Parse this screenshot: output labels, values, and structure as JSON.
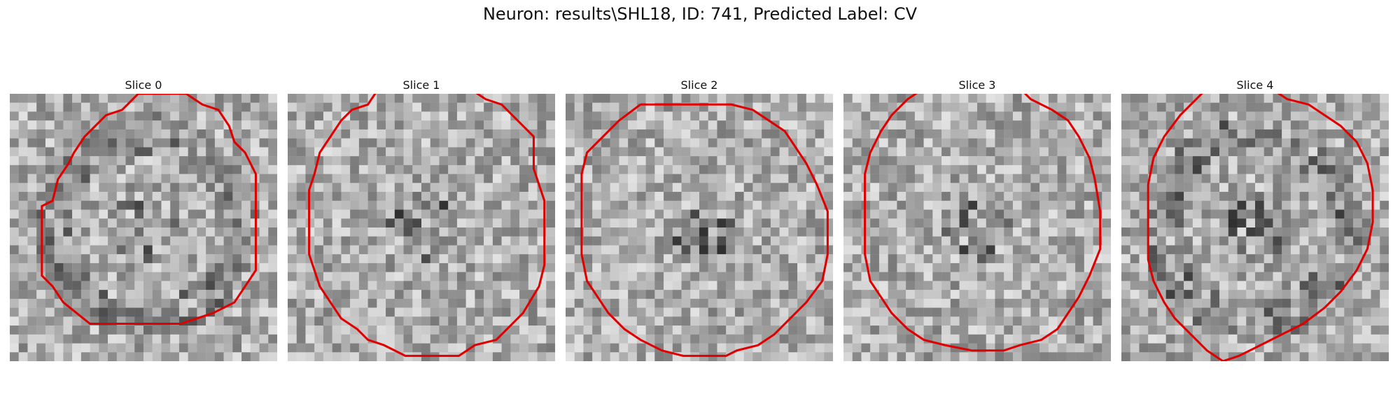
{
  "figure": {
    "title": "Neuron: results\\SHL18, ID: 741, Predicted Label: CV"
  },
  "panels": [
    {
      "title": "Slice 0",
      "seed": 11,
      "dark_ring": true,
      "contour": [
        [
          48,
          0
        ],
        [
          66,
          0
        ],
        [
          72,
          4
        ],
        [
          78,
          6
        ],
        [
          82,
          12
        ],
        [
          84,
          18
        ],
        [
          88,
          22
        ],
        [
          92,
          30
        ],
        [
          92,
          66
        ],
        [
          88,
          72
        ],
        [
          84,
          78
        ],
        [
          80,
          80
        ],
        [
          76,
          82
        ],
        [
          70,
          84
        ],
        [
          64,
          86
        ],
        [
          30,
          86
        ],
        [
          20,
          78
        ],
        [
          16,
          72
        ],
        [
          12,
          68
        ],
        [
          12,
          56
        ],
        [
          12,
          42
        ],
        [
          16,
          40
        ],
        [
          18,
          32
        ],
        [
          22,
          26
        ],
        [
          24,
          22
        ],
        [
          28,
          16
        ],
        [
          32,
          12
        ],
        [
          36,
          8
        ],
        [
          42,
          6
        ]
      ]
    },
    {
      "title": "Slice 1",
      "seed": 23,
      "dark_ring": false,
      "contour": [
        [
          34,
          -2
        ],
        [
          30,
          4
        ],
        [
          24,
          6
        ],
        [
          20,
          10
        ],
        [
          16,
          16
        ],
        [
          12,
          22
        ],
        [
          10,
          30
        ],
        [
          8,
          36
        ],
        [
          8,
          50
        ],
        [
          8,
          60
        ],
        [
          10,
          66
        ],
        [
          12,
          72
        ],
        [
          16,
          78
        ],
        [
          20,
          84
        ],
        [
          26,
          88
        ],
        [
          30,
          92
        ],
        [
          36,
          94
        ],
        [
          44,
          98
        ],
        [
          64,
          98
        ],
        [
          70,
          94
        ],
        [
          78,
          92
        ],
        [
          84,
          86
        ],
        [
          88,
          82
        ],
        [
          94,
          72
        ],
        [
          96,
          64
        ],
        [
          96,
          40
        ],
        [
          94,
          34
        ],
        [
          92,
          28
        ],
        [
          92,
          16
        ],
        [
          86,
          10
        ],
        [
          80,
          4
        ],
        [
          74,
          2
        ],
        [
          68,
          -2
        ]
      ]
    },
    {
      "title": "Slice 2",
      "seed": 37,
      "dark_ring": false,
      "contour": [
        [
          28,
          4
        ],
        [
          20,
          10
        ],
        [
          14,
          16
        ],
        [
          8,
          22
        ],
        [
          6,
          30
        ],
        [
          6,
          44
        ],
        [
          6,
          60
        ],
        [
          8,
          70
        ],
        [
          12,
          76
        ],
        [
          16,
          82
        ],
        [
          22,
          88
        ],
        [
          28,
          92
        ],
        [
          36,
          96
        ],
        [
          44,
          98
        ],
        [
          60,
          98
        ],
        [
          64,
          96
        ],
        [
          72,
          94
        ],
        [
          78,
          90
        ],
        [
          84,
          84
        ],
        [
          90,
          78
        ],
        [
          96,
          70
        ],
        [
          98,
          60
        ],
        [
          98,
          44
        ],
        [
          94,
          34
        ],
        [
          90,
          26
        ],
        [
          86,
          20
        ],
        [
          82,
          14
        ],
        [
          76,
          10
        ],
        [
          70,
          6
        ],
        [
          62,
          4
        ],
        [
          50,
          4
        ],
        [
          40,
          4
        ]
      ]
    },
    {
      "title": "Slice 3",
      "seed": 41,
      "dark_ring": false,
      "contour": [
        [
          30,
          -2
        ],
        [
          24,
          2
        ],
        [
          18,
          8
        ],
        [
          14,
          14
        ],
        [
          10,
          22
        ],
        [
          8,
          30
        ],
        [
          8,
          46
        ],
        [
          8,
          60
        ],
        [
          10,
          70
        ],
        [
          14,
          76
        ],
        [
          18,
          82
        ],
        [
          24,
          88
        ],
        [
          30,
          92
        ],
        [
          38,
          94
        ],
        [
          48,
          96
        ],
        [
          60,
          96
        ],
        [
          66,
          94
        ],
        [
          74,
          92
        ],
        [
          80,
          88
        ],
        [
          84,
          82
        ],
        [
          88,
          76
        ],
        [
          92,
          68
        ],
        [
          96,
          58
        ],
        [
          96,
          44
        ],
        [
          94,
          32
        ],
        [
          92,
          24
        ],
        [
          88,
          16
        ],
        [
          84,
          10
        ],
        [
          78,
          6
        ],
        [
          70,
          2
        ],
        [
          66,
          -2
        ]
      ]
    },
    {
      "title": "Slice 4",
      "seed": 53,
      "dark_ring": true,
      "contour": [
        [
          32,
          -2
        ],
        [
          22,
          8
        ],
        [
          16,
          16
        ],
        [
          12,
          24
        ],
        [
          10,
          34
        ],
        [
          10,
          48
        ],
        [
          10,
          62
        ],
        [
          12,
          70
        ],
        [
          16,
          78
        ],
        [
          20,
          84
        ],
        [
          26,
          90
        ],
        [
          32,
          96
        ],
        [
          38,
          100
        ],
        [
          44,
          98
        ],
        [
          52,
          94
        ],
        [
          60,
          90
        ],
        [
          68,
          86
        ],
        [
          76,
          80
        ],
        [
          82,
          74
        ],
        [
          88,
          66
        ],
        [
          92,
          58
        ],
        [
          94,
          48
        ],
        [
          94,
          36
        ],
        [
          92,
          26
        ],
        [
          88,
          18
        ],
        [
          82,
          12
        ],
        [
          76,
          8
        ],
        [
          70,
          4
        ],
        [
          62,
          2
        ],
        [
          56,
          -2
        ]
      ]
    }
  ]
}
